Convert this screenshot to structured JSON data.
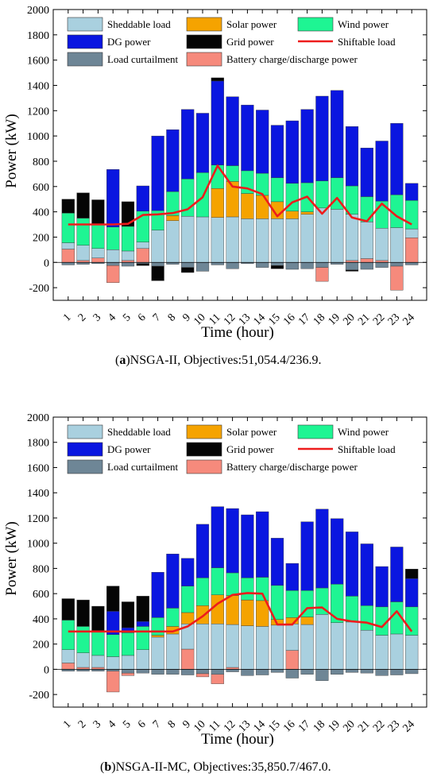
{
  "components": [
    "Sheddable load",
    "Solar power",
    "Wind power",
    "DG power",
    "Grid power",
    "Shiftable load",
    "Load curtailment",
    "Battery charge/discharge power"
  ],
  "colors": {
    "sheddable": "#a9d0df",
    "solar": "#f5a300",
    "wind": "#1ef593",
    "dg": "#0a16e0",
    "grid": "#050505",
    "shiftable": "#ee1c1c",
    "curtail": "#6e8696",
    "battery": "#f68a7c"
  },
  "chart_data": [
    {
      "type": "bar",
      "panel_letter": "a",
      "caption": "NSGA-II, Objectives:51,054.4/236.9.",
      "xlabel": "Time (hour)",
      "ylabel": "Power (kW)",
      "ylim": [
        -300,
        2000
      ],
      "yticks": [
        "2000",
        "1800",
        "1600",
        "1400",
        "1200",
        "1000",
        "800",
        "600",
        "400",
        "200",
        "0",
        "-200"
      ],
      "categories": [
        "1",
        "2",
        "3",
        "4",
        "5",
        "6",
        "7",
        "8",
        "9",
        "10",
        "11",
        "12",
        "13",
        "14",
        "15",
        "16",
        "17",
        "18",
        "19",
        "20",
        "21",
        "22",
        "23",
        "24"
      ],
      "legend": {
        "sheddable": "Sheddable load",
        "solar": "Solar power",
        "wind": "Wind power",
        "dg": "DG power",
        "grid": "Grid power",
        "shiftable": "Shiftable load",
        "curtail": "Load curtailment",
        "battery": "Battery charge/discharge power"
      },
      "series": [
        {
          "key": "battery_pos",
          "name": "Battery charge/discharge power",
          "values": [
            105,
            15,
            35,
            0,
            15,
            110,
            0,
            0,
            0,
            0,
            0,
            0,
            0,
            0,
            0,
            0,
            0,
            0,
            0,
            15,
            30,
            15,
            0,
            195
          ]
        },
        {
          "key": "sheddable",
          "name": "Sheddable load",
          "values": [
            50,
            120,
            75,
            100,
            75,
            50,
            255,
            330,
            365,
            360,
            355,
            360,
            345,
            345,
            345,
            345,
            380,
            430,
            420,
            365,
            290,
            255,
            275,
            70
          ]
        },
        {
          "key": "solar",
          "name": "Solar power",
          "values": [
            0,
            0,
            0,
            0,
            0,
            0,
            0,
            40,
            0,
            0,
            230,
            280,
            200,
            185,
            135,
            60,
            20,
            0,
            0,
            0,
            0,
            0,
            0,
            0
          ]
        },
        {
          "key": "wind",
          "name": "Wind power",
          "values": [
            235,
            215,
            195,
            180,
            195,
            245,
            155,
            190,
            295,
            350,
            185,
            125,
            180,
            175,
            190,
            220,
            230,
            215,
            250,
            225,
            200,
            215,
            260,
            225
          ]
        },
        {
          "key": "dg",
          "name": "DG power",
          "values": [
            0,
            0,
            0,
            455,
            0,
            200,
            590,
            490,
            550,
            470,
            665,
            545,
            520,
            500,
            415,
            495,
            580,
            670,
            690,
            470,
            385,
            475,
            565,
            135
          ]
        },
        {
          "key": "grid_pos",
          "name": "Grid power",
          "values": [
            110,
            200,
            190,
            0,
            195,
            0,
            0,
            0,
            0,
            0,
            25,
            0,
            0,
            0,
            0,
            0,
            0,
            0,
            0,
            0,
            0,
            0,
            0,
            0
          ]
        },
        {
          "key": "curtail",
          "name": "Load curtailment",
          "values": [
            -20,
            -15,
            -10,
            -25,
            -30,
            -10,
            -30,
            -15,
            -40,
            -70,
            -20,
            -50,
            -10,
            -40,
            -25,
            -55,
            -50,
            -40,
            -15,
            -60,
            -55,
            -40,
            -30,
            -20
          ]
        },
        {
          "key": "battery_neg",
          "name": "Battery charge/discharge power",
          "values": [
            0,
            0,
            0,
            -135,
            0,
            0,
            0,
            0,
            0,
            0,
            0,
            0,
            0,
            0,
            0,
            0,
            0,
            -110,
            0,
            0,
            0,
            0,
            -190,
            0
          ]
        },
        {
          "key": "grid_neg",
          "name": "Grid power",
          "values": [
            0,
            0,
            0,
            0,
            0,
            -15,
            -115,
            0,
            -40,
            0,
            0,
            0,
            0,
            0,
            -25,
            0,
            0,
            0,
            0,
            -10,
            0,
            0,
            0,
            0
          ]
        },
        {
          "key": "shiftable",
          "name": "Shiftable load",
          "line": true,
          "values": [
            300,
            300,
            300,
            300,
            305,
            375,
            380,
            390,
            420,
            515,
            765,
            600,
            585,
            540,
            365,
            475,
            520,
            385,
            510,
            355,
            325,
            465,
            365,
            300
          ]
        }
      ]
    },
    {
      "type": "bar",
      "panel_letter": "b",
      "caption": "NSGA-II-MC, Objectives:35,850.7/467.0.",
      "xlabel": "Time (hour)",
      "ylabel": "Power (kW)",
      "ylim": [
        -300,
        2000
      ],
      "yticks": [
        "2000",
        "1800",
        "1600",
        "1400",
        "1200",
        "1000",
        "800",
        "600",
        "400",
        "200",
        "0",
        "-200"
      ],
      "categories": [
        "1",
        "2",
        "3",
        "4",
        "5",
        "6",
        "7",
        "8",
        "9",
        "10",
        "11",
        "12",
        "13",
        "14",
        "15",
        "16",
        "17",
        "18",
        "19",
        "20",
        "21",
        "22",
        "23",
        "24"
      ],
      "legend": {
        "sheddable": "Sheddable load",
        "solar": "Solar power",
        "wind": "Wind power",
        "dg": "DG power",
        "grid": "Grid power",
        "shiftable": "Shiftable load",
        "curtail": "Load curtailment",
        "battery": "Battery charge/discharge power"
      },
      "series": [
        {
          "key": "battery_pos",
          "name": "Battery charge/discharge power",
          "values": [
            50,
            15,
            15,
            0,
            0,
            0,
            0,
            0,
            160,
            0,
            0,
            15,
            0,
            0,
            0,
            150,
            0,
            0,
            0,
            0,
            0,
            0,
            0,
            0
          ]
        },
        {
          "key": "sheddable",
          "name": "Sheddable load",
          "values": [
            105,
            115,
            95,
            100,
            110,
            155,
            255,
            280,
            200,
            360,
            360,
            340,
            345,
            340,
            350,
            210,
            355,
            435,
            370,
            375,
            310,
            270,
            280,
            270
          ]
        },
        {
          "key": "solar",
          "name": "Solar power",
          "values": [
            0,
            0,
            0,
            0,
            0,
            0,
            15,
            60,
            90,
            145,
            230,
            230,
            205,
            205,
            45,
            50,
            60,
            0,
            0,
            0,
            0,
            0,
            0,
            0
          ]
        },
        {
          "key": "wind",
          "name": "Wind power",
          "values": [
            235,
            210,
            190,
            175,
            180,
            185,
            140,
            145,
            210,
            220,
            215,
            180,
            175,
            185,
            270,
            215,
            210,
            210,
            305,
            205,
            195,
            225,
            255,
            225
          ]
        },
        {
          "key": "dg",
          "name": "DG power",
          "values": [
            0,
            0,
            0,
            185,
            40,
            40,
            360,
            430,
            220,
            425,
            485,
            510,
            500,
            520,
            375,
            215,
            545,
            625,
            520,
            510,
            490,
            320,
            435,
            225
          ]
        },
        {
          "key": "grid_pos",
          "name": "Grid power",
          "values": [
            170,
            210,
            200,
            200,
            205,
            200,
            0,
            0,
            0,
            0,
            0,
            0,
            0,
            0,
            0,
            0,
            0,
            0,
            0,
            0,
            0,
            0,
            0,
            75
          ]
        },
        {
          "key": "curtail",
          "name": "Load curtailment",
          "values": [
            -15,
            -15,
            -15,
            -15,
            -30,
            -30,
            -40,
            -40,
            -45,
            -35,
            -40,
            -20,
            -50,
            -45,
            -25,
            -70,
            -40,
            -90,
            -40,
            -25,
            -30,
            -50,
            -45,
            -35
          ]
        },
        {
          "key": "battery_neg",
          "name": "Battery charge/discharge power",
          "values": [
            0,
            0,
            0,
            -165,
            -20,
            0,
            0,
            0,
            0,
            -25,
            -75,
            0,
            0,
            0,
            0,
            0,
            0,
            0,
            0,
            0,
            0,
            0,
            0,
            0
          ]
        },
        {
          "key": "grid_neg",
          "name": "Grid power",
          "values": [
            0,
            0,
            0,
            0,
            0,
            0,
            0,
            0,
            0,
            0,
            0,
            0,
            0,
            0,
            0,
            0,
            0,
            0,
            0,
            0,
            0,
            0,
            0,
            0
          ]
        },
        {
          "key": "shiftable",
          "name": "Shiftable load",
          "line": true,
          "values": [
            300,
            300,
            300,
            300,
            300,
            300,
            300,
            300,
            340,
            420,
            520,
            590,
            605,
            600,
            355,
            355,
            485,
            490,
            400,
            380,
            370,
            335,
            460,
            300
          ]
        }
      ]
    }
  ]
}
